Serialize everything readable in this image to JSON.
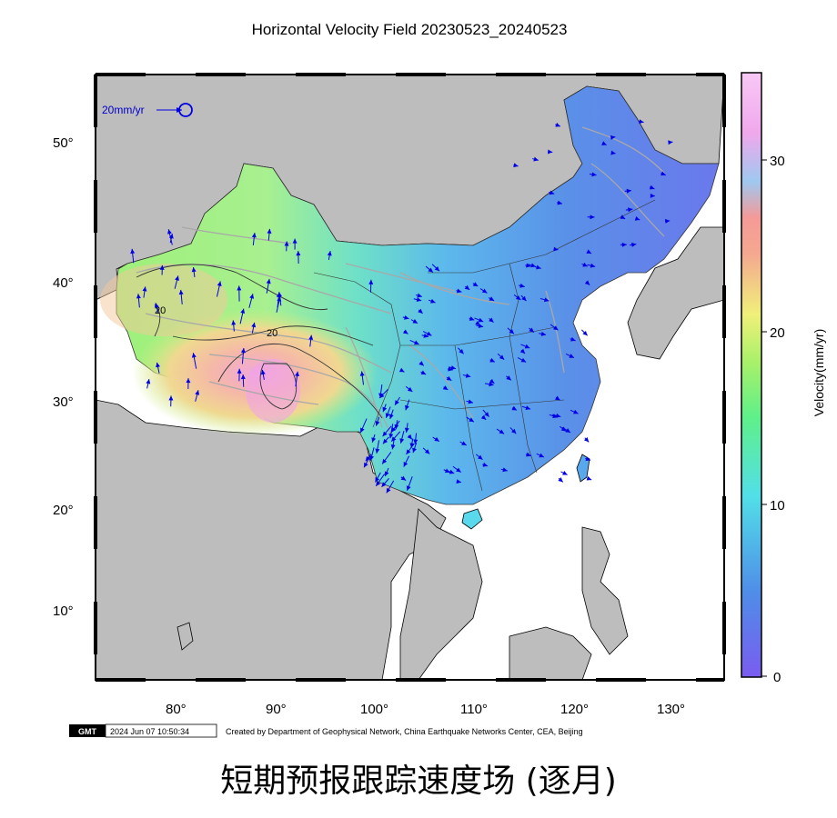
{
  "map": {
    "title": "Horizontal Velocity Field 20230523_20240523",
    "lon_ticks": [
      "80°",
      "90°",
      "100°",
      "110°",
      "120°",
      "130°"
    ],
    "lat_ticks": [
      "50°",
      "40°",
      "30°",
      "20°",
      "10°"
    ],
    "legend_vector_label": "20mm/yr",
    "contour_labels": [
      "20",
      "20"
    ],
    "land_outside_color": "#bdbdbd",
    "ocean_color": "#ffffff",
    "vector_color": "#0000e6",
    "fault_color": "#a8a8a8"
  },
  "colorbar": {
    "ticks": [
      "30",
      "20",
      "10",
      "0"
    ],
    "label": "Velocity(mm/yr)",
    "range": [
      0,
      35
    ],
    "colors": [
      "#7a5cf0",
      "#4f8de8",
      "#52dfe8",
      "#5ff08a",
      "#a8f06a",
      "#f0f07a",
      "#f5b98a",
      "#f5a0a0",
      "#f5a0e8",
      "#f8c8f5"
    ]
  },
  "footer": {
    "logo": "GMT",
    "timestamp": "2024 Jun 07 10:50:34",
    "credit": "Created by Department of Geophysical Network, China Earthquake Networks Center, CEA, Beijing"
  },
  "caption": "短期预报跟踪速度场 (逐月)"
}
